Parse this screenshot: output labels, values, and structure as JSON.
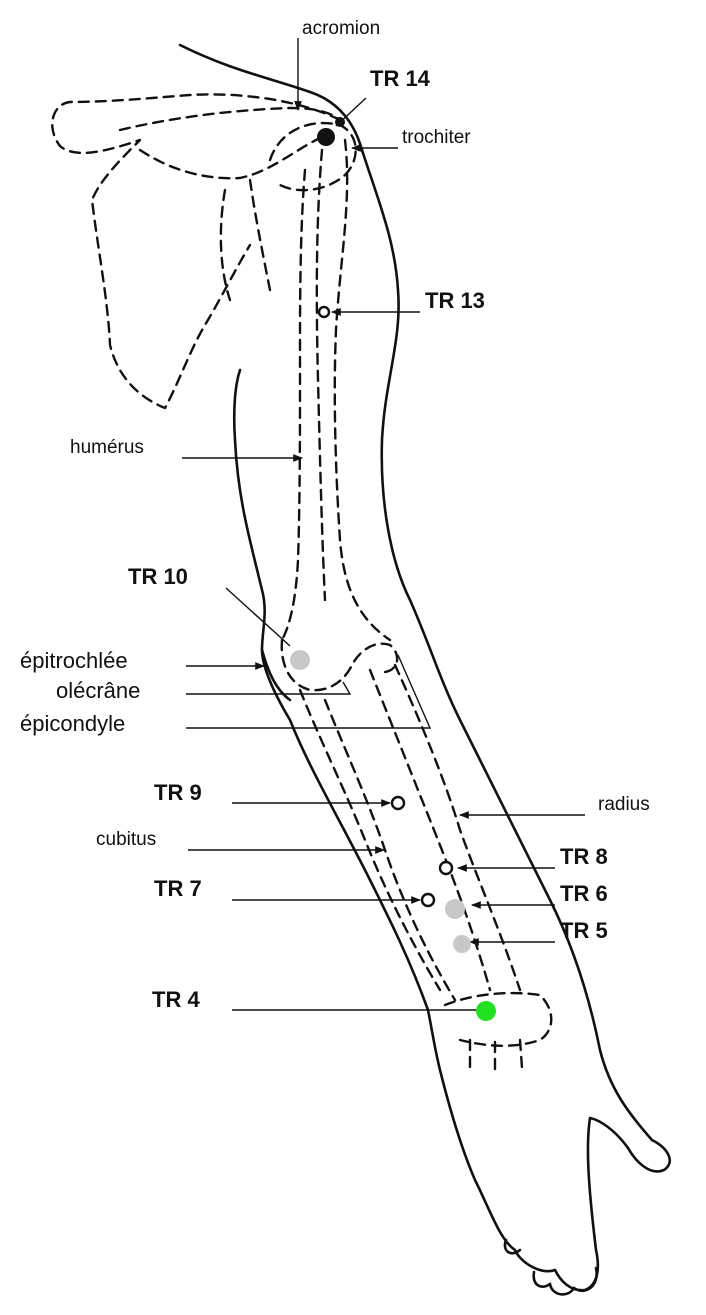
{
  "labels": {
    "acromion": "acromion",
    "tr14": "TR 14",
    "trochiter": "trochiter",
    "tr13": "TR 13",
    "humerus": "humérus",
    "tr10": "TR 10",
    "epitrochlee": "épitrochlée",
    "olecrane": "olécrâne",
    "epicondyle": "épicondyle",
    "tr9": "TR 9",
    "radius": "radius",
    "cubitus": "cubitus",
    "tr8": "TR 8",
    "tr7": "TR 7",
    "tr6": "TR 6",
    "tr5": "TR 5",
    "tr4": "TR 4"
  },
  "colors": {
    "ink": "#111111",
    "background": "#ffffff",
    "highlight_point": "#22e022",
    "grey_point": "#c8c8c8"
  }
}
